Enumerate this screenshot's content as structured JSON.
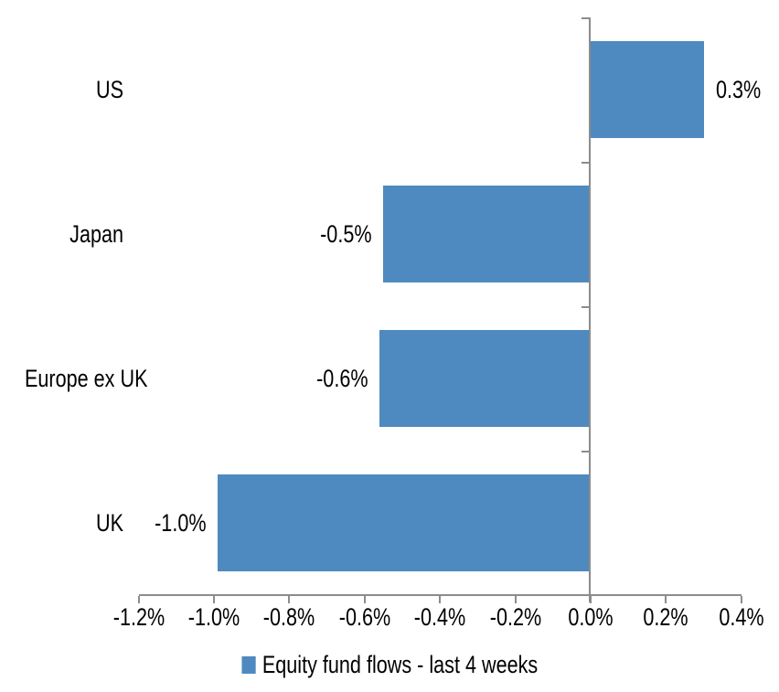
{
  "chart_data": {
    "type": "bar",
    "orientation": "horizontal",
    "title": "",
    "categories": [
      "US",
      "Japan",
      "Europe ex UK",
      "UK"
    ],
    "values": [
      0.3,
      -0.5,
      -0.6,
      -1.0
    ],
    "values_plotted": [
      0.3,
      -0.55,
      -0.56,
      -0.99
    ],
    "data_labels": [
      "0.3%",
      "-0.5%",
      "-0.6%",
      "-1.0%"
    ],
    "x_axis": {
      "min": -1.2,
      "max": 0.4,
      "step": 0.2,
      "tick_labels": [
        "-1.2%",
        "-1.0%",
        "-0.8%",
        "-0.6%",
        "-0.4%",
        "-0.2%",
        "0.0%",
        "0.2%",
        "0.4%"
      ]
    },
    "legend": {
      "position": "bottom",
      "label": "Equity fund flows - last 4 weeks",
      "marker": "square"
    },
    "grid": false,
    "colors": {
      "bar": "#4E8ABF",
      "axis": "#8C8C8C",
      "text": "#000000",
      "background": "#FFFFFF"
    }
  }
}
